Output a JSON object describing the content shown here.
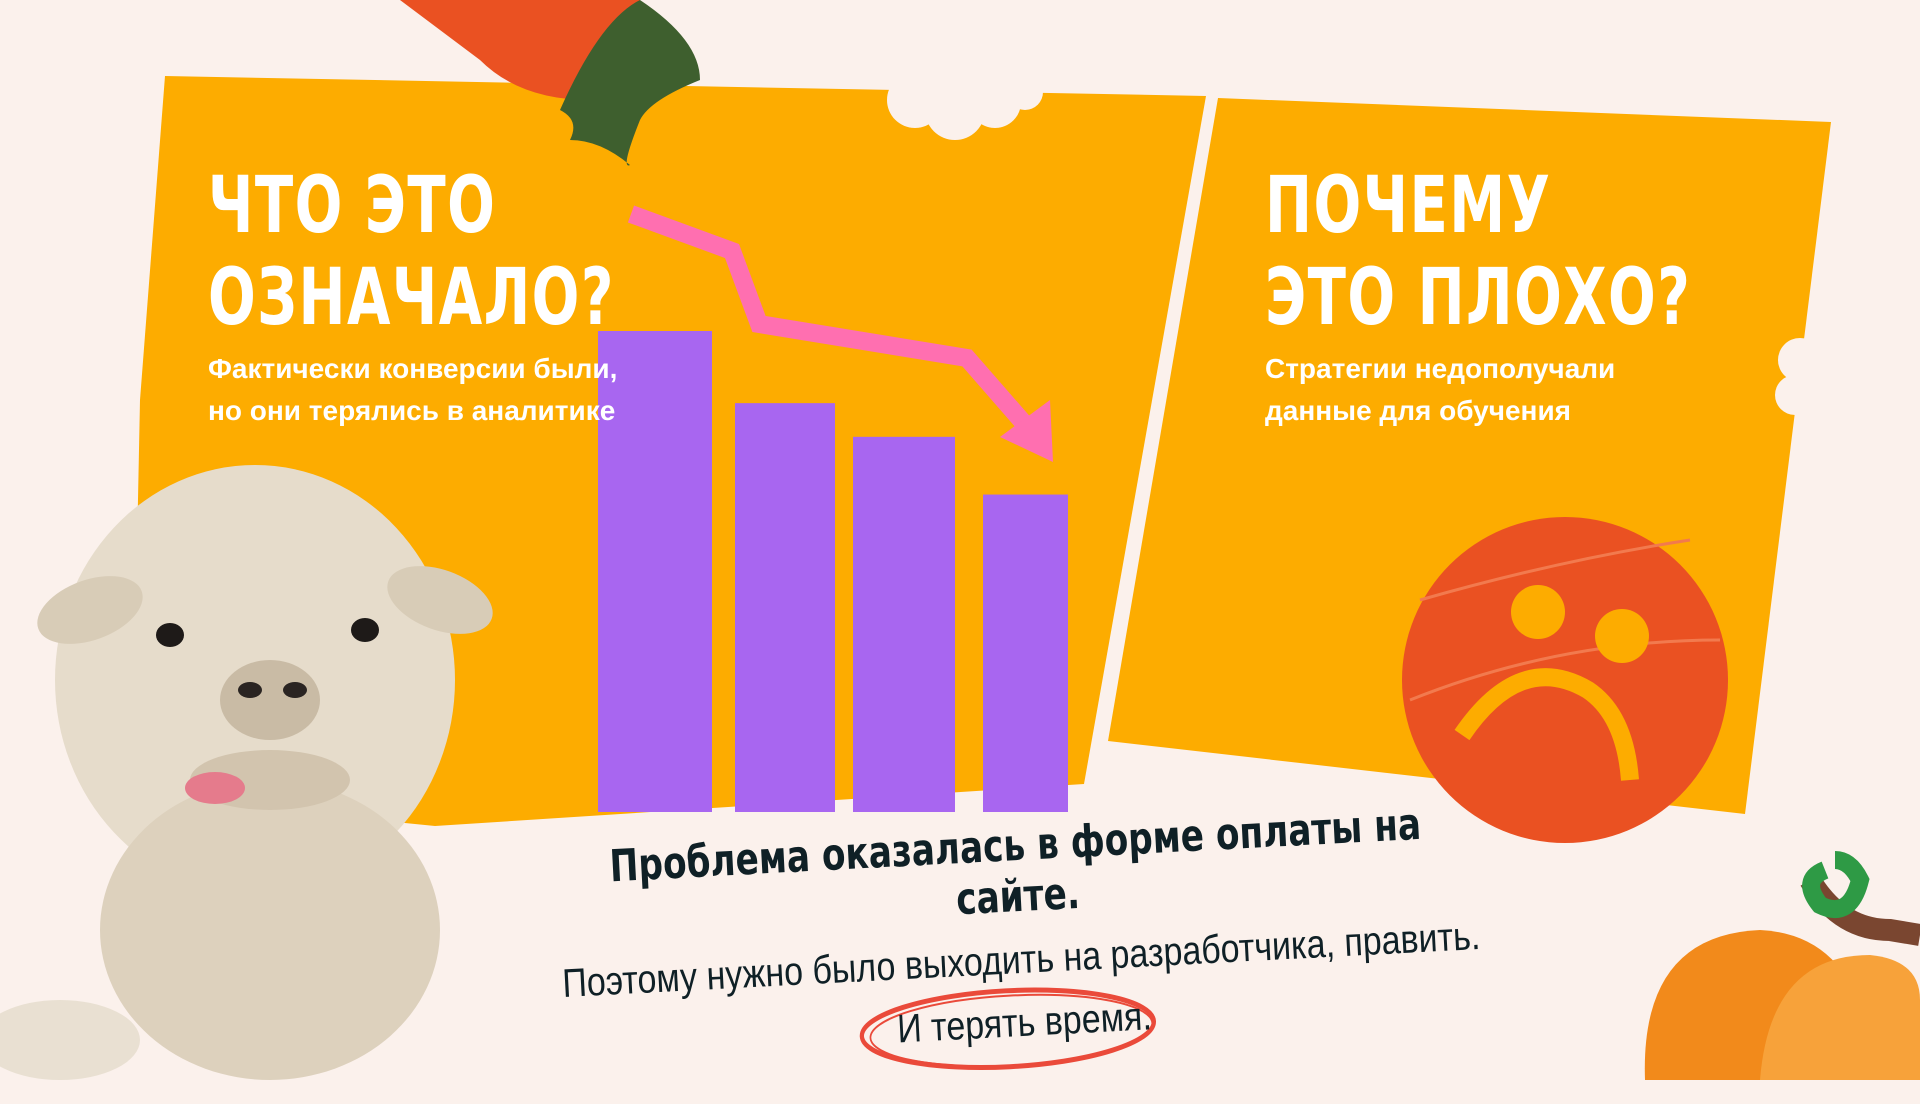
{
  "left_card": {
    "title_line1": "ЧТО ЭТО",
    "title_line2": "ОЗНАЧАЛО?",
    "subtitle_line1": "Фактически конверсии были,",
    "subtitle_line2": "но они терялись в аналитике",
    "bar_levels": [
      1.0,
      0.85,
      0.78,
      0.66
    ]
  },
  "right_card": {
    "title_line1": "ПОЧЕМУ",
    "title_line2": "ЭТО ПЛОХО?",
    "subtitle_line1": "Стратегии недополучали",
    "subtitle_line2": "данные для обучения"
  },
  "bottom": {
    "line1": "Проблема оказалась в форме оплаты на сайте.",
    "line2": "Поэтому нужно было выходить на разработчика, править.",
    "line3": "И терять время."
  },
  "colors": {
    "background": "#fbf1ec",
    "card": "#fdac00",
    "bars": "#a866f0",
    "arrow": "#ff6fb0",
    "sad_face": "#ea5122",
    "text": "#0f2026"
  },
  "icons": [
    "carrot-icon",
    "alpaca-image",
    "sad-face-icon",
    "pumpkin-icon",
    "down-arrow-icon"
  ]
}
